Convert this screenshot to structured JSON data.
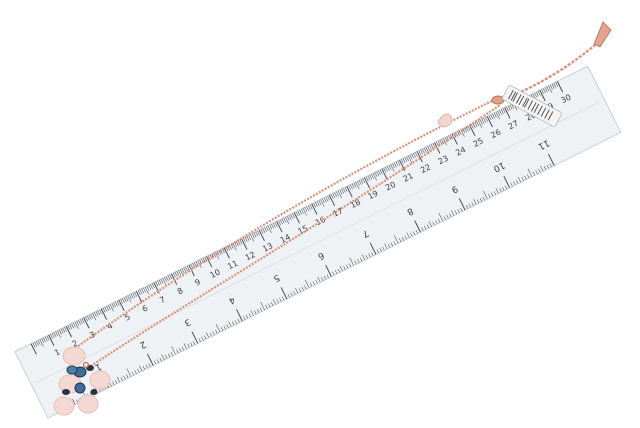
{
  "photo": {
    "subject": "rose gold necklace with flower pendant lying on transparent ruler",
    "colors": {
      "background": "#ffffff",
      "ruler_body": "#e9eef1",
      "ruler_edge": "#c7d0d6",
      "ruler_ink": "#3a3f44",
      "chain": "#d9917a",
      "chain_dark": "#b86e58",
      "petal": "#f3d9d3",
      "petal_shade": "#e7bfb6",
      "gem_blue": "#3b6e9c",
      "gem_dark": "#2a3240",
      "tag": "#f4f4f4"
    }
  },
  "ruler": {
    "cm_labels": [
      "1",
      "2",
      "3",
      "4",
      "5",
      "6",
      "7",
      "8",
      "9",
      "10",
      "11",
      "12",
      "13",
      "14",
      "15",
      "16",
      "17",
      "18",
      "19",
      "20",
      "21",
      "22",
      "23",
      "24",
      "25",
      "26",
      "27",
      "28",
      "29",
      "30"
    ],
    "inch_labels": [
      "1",
      "2",
      "3",
      "4",
      "5",
      "6",
      "7",
      "8",
      "9",
      "10",
      "11"
    ]
  }
}
